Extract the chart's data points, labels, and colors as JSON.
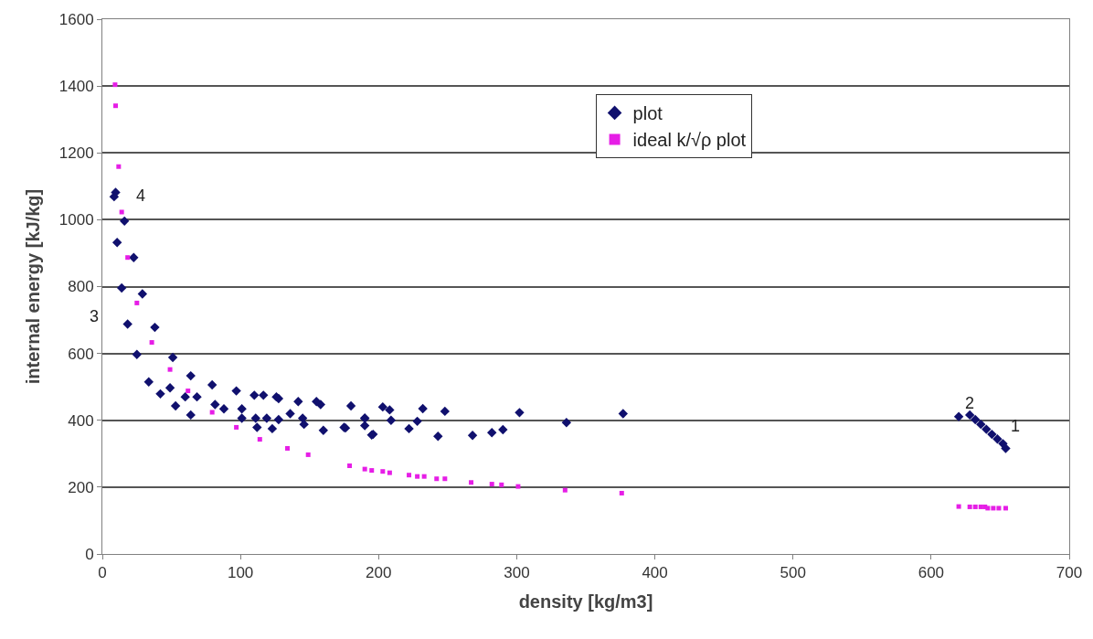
{
  "chart_data": {
    "type": "scatter",
    "xlabel": "density [kg/m3]",
    "ylabel": "internal energy [kJ/kg]",
    "xlim": [
      0,
      700
    ],
    "xticks": [
      0,
      100,
      200,
      300,
      400,
      500,
      600,
      700
    ],
    "ylim": [
      0,
      1600
    ],
    "yticks": [
      0,
      200,
      400,
      600,
      800,
      1000,
      1200,
      1400,
      1600
    ],
    "grid": "y",
    "legend": "top right",
    "series": [
      {
        "name": "plot",
        "color": "#10106e",
        "marker": "diamond",
        "x": [
          9.6,
          16,
          22.7,
          29,
          38,
          51,
          64,
          79.5,
          97,
          110,
          127.6,
          141.8,
          158,
          180,
          8.5,
          10.7,
          14,
          18.3,
          25,
          33.6,
          42,
          53,
          64,
          49,
          60,
          68.5,
          81.6,
          88,
          101,
          101,
          111,
          112,
          116.6,
          119,
          123,
          126,
          127.6,
          136,
          145,
          146,
          155,
          160,
          175,
          176,
          190,
          190,
          190,
          195,
          196,
          203,
          208,
          209,
          222,
          228,
          232,
          243,
          248,
          268,
          282,
          290,
          302,
          336,
          377,
          620,
          628,
          632,
          636,
          640,
          644,
          648,
          652,
          654
        ],
        "values": [
          1082,
          996,
          887,
          778,
          678,
          588,
          533,
          506,
          488,
          475,
          465,
          456,
          447,
          443,
          1069,
          932,
          796,
          688,
          597,
          515,
          479,
          443,
          416,
          497,
          470,
          470,
          447,
          434,
          434,
          406,
          406,
          379,
          475,
          406,
          375,
          470,
          402,
          420,
          406,
          388,
          456,
          370,
          379,
          377,
          406,
          384,
          406,
          356,
          358,
          440,
          431,
          400,
          375,
          397,
          435,
          352,
          427,
          355,
          363,
          372,
          423,
          393,
          420,
          411,
          416,
          402,
          388,
          373,
          358,
          344,
          330,
          316
        ]
      },
      {
        "name": "ideal k/√ρ plot",
        "color": "#e61ee6",
        "marker": "square",
        "x": [
          9.2,
          9.6,
          11.8,
          14,
          18.3,
          25,
          35.8,
          49,
          62,
          79.5,
          97,
          114,
          134,
          149,
          179,
          190,
          195,
          203,
          208,
          222,
          228,
          233,
          242,
          248,
          267,
          282,
          289,
          301,
          335,
          376,
          620,
          628,
          632,
          636,
          639,
          641,
          645,
          649,
          654
        ],
        "values": [
          1404,
          1341,
          1159,
          1023,
          887,
          751,
          633,
          552,
          488,
          424,
          379,
          343,
          316,
          297,
          264,
          254,
          250,
          247,
          243,
          236,
          232,
          232,
          225,
          225,
          214,
          209,
          207,
          202,
          191,
          182,
          142,
          141,
          141,
          141,
          141,
          137,
          137,
          137,
          137
        ]
      }
    ],
    "annotations": [
      "1",
      "2",
      "3",
      "4"
    ]
  }
}
